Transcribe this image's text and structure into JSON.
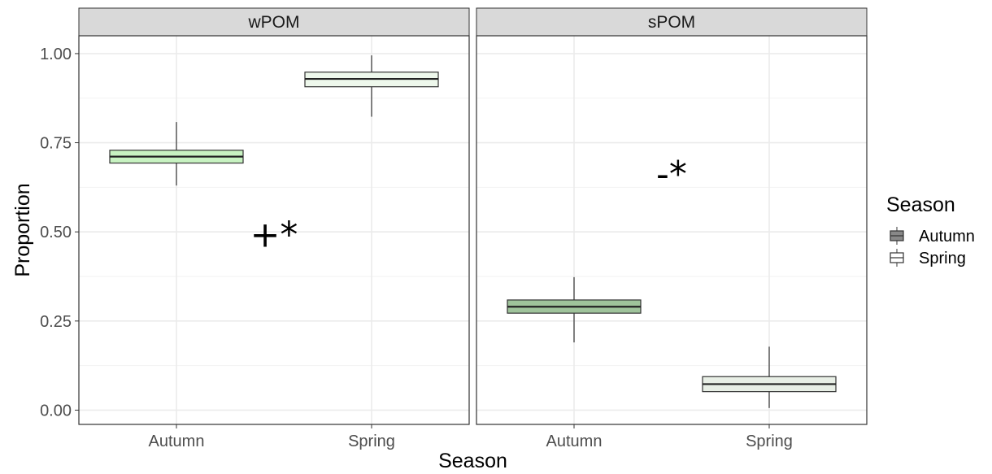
{
  "chart_data": {
    "type": "box",
    "ylabel": "Proportion",
    "xlabel": "Season",
    "ylim": [
      -0.04,
      1.05
    ],
    "yticks": [
      "0.00",
      "0.25",
      "0.50",
      "0.75",
      "1.00"
    ],
    "ytick_values": [
      0,
      0.25,
      0.5,
      0.75,
      1.0
    ],
    "categories": [
      "Autumn",
      "Spring"
    ],
    "grid": true,
    "legend": {
      "title": "Season",
      "position": "right",
      "entries": [
        {
          "label": "Autumn",
          "color": "#888888"
        },
        {
          "label": "Spring",
          "color": "#ffffff"
        }
      ]
    },
    "panels": [
      {
        "strip": "wPOM",
        "annotation": "+*",
        "annotation_pos": {
          "category": 1.5,
          "y": 0.49
        },
        "boxes": [
          {
            "category": "Autumn",
            "min": 0.63,
            "q1": 0.693,
            "median": 0.711,
            "q3": 0.729,
            "max": 0.808,
            "fill": "#c7f2c1"
          },
          {
            "category": "Spring",
            "min": 0.823,
            "q1": 0.907,
            "median": 0.929,
            "q3": 0.948,
            "max": 0.995,
            "fill": "#eef8ec"
          }
        ]
      },
      {
        "strip": "sPOM",
        "annotation": "-*",
        "annotation_pos": {
          "category": 1.5,
          "y": 0.66
        },
        "boxes": [
          {
            "category": "Autumn",
            "min": 0.19,
            "q1": 0.272,
            "median": 0.29,
            "q3": 0.309,
            "max": 0.373,
            "fill": "#9fc39b"
          },
          {
            "category": "Spring",
            "min": 0.006,
            "q1": 0.052,
            "median": 0.073,
            "q3": 0.094,
            "max": 0.178,
            "fill": "#e8efe6"
          }
        ]
      }
    ]
  }
}
